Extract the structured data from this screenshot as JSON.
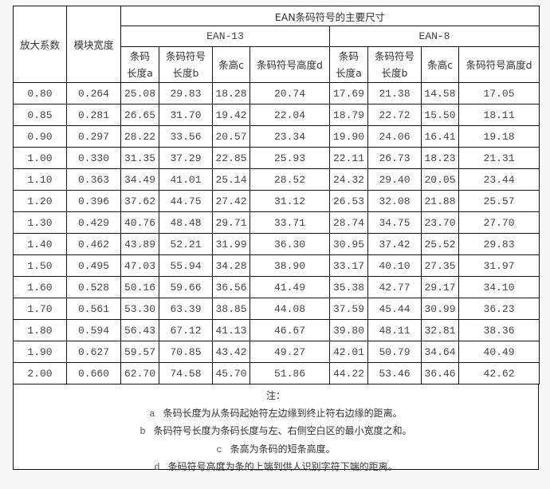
{
  "table": {
    "col_magnification": "放大系数",
    "col_module_width": "模块宽度",
    "group_title": "EAN条码符号的主要尺寸",
    "ean13": "EAN-13",
    "ean8": "EAN-8",
    "sub_headers": [
      {
        "l1": "条码",
        "l2": "长度a"
      },
      {
        "l1": "条码符号",
        "l2": "长度b"
      },
      {
        "l1": "条高c",
        "l2": ""
      },
      {
        "l1": "条码符号高度d",
        "l2": ""
      },
      {
        "l1": "条码",
        "l2": "长度a"
      },
      {
        "l1": "条码符号",
        "l2": "长度b"
      },
      {
        "l1": "条高c",
        "l2": ""
      },
      {
        "l1": "条码符号高度d",
        "l2": ""
      }
    ],
    "rows": [
      [
        "0.80",
        "0.264",
        "25.08",
        "29.83",
        "18.28",
        "20.74",
        "17.69",
        "21.38",
        "14.58",
        "17.05"
      ],
      [
        "0.85",
        "0.281",
        "26.65",
        "31.70",
        "19.42",
        "22.04",
        "18.79",
        "22.72",
        "15.50",
        "18.11"
      ],
      [
        "0.90",
        "0.297",
        "28.22",
        "33.56",
        "20.57",
        "23.34",
        "19.90",
        "24.06",
        "16.41",
        "19.18"
      ],
      [
        "1.00",
        "0.330",
        "31.35",
        "37.29",
        "22.85",
        "25.93",
        "22.11",
        "26.73",
        "18.23",
        "21.31"
      ],
      [
        "1.10",
        "0.363",
        "34.49",
        "41.01",
        "25.14",
        "28.52",
        "24.32",
        "29.40",
        "20.05",
        "23.44"
      ],
      [
        "1.20",
        "0.396",
        "37.62",
        "44.75",
        "27.42",
        "31.12",
        "26.53",
        "32.08",
        "21.88",
        "25.57"
      ],
      [
        "1.30",
        "0.429",
        "40.76",
        "48.48",
        "29.71",
        "33.71",
        "28.74",
        "34.75",
        "23.70",
        "27.70"
      ],
      [
        "1.40",
        "0.462",
        "43.89",
        "52.21",
        "31.99",
        "36.30",
        "30.95",
        "37.42",
        "25.52",
        "29.83"
      ],
      [
        "1.50",
        "0.495",
        "47.03",
        "55.94",
        "34.28",
        "38.90",
        "33.17",
        "40.10",
        "27.35",
        "31.97"
      ],
      [
        "1.60",
        "0.528",
        "50.16",
        "59.66",
        "36.56",
        "41.49",
        "35.38",
        "42.77",
        "29.17",
        "34.10"
      ],
      [
        "1.70",
        "0.561",
        "53.30",
        "63.39",
        "38.85",
        "44.08",
        "37.59",
        "45.44",
        "30.99",
        "36.23"
      ],
      [
        "1.80",
        "0.594",
        "56.43",
        "67.12",
        "41.13",
        "46.67",
        "39.80",
        "48.11",
        "32.81",
        "38.36"
      ],
      [
        "1.90",
        "0.627",
        "59.57",
        "70.85",
        "43.42",
        "49.27",
        "42.01",
        "50.79",
        "34.64",
        "40.49"
      ],
      [
        "2.00",
        "0.660",
        "62.70",
        "74.58",
        "45.70",
        "51.86",
        "44.22",
        "53.46",
        "36.46",
        "42.62"
      ]
    ]
  },
  "notes": {
    "title": "注：",
    "items": [
      {
        "key": "a",
        "text": "条码长度为从条码起始符左边缘到终止符右边缘的距离。"
      },
      {
        "key": "b",
        "text": "条码符号长度为条码长度与左、右侧空白区的最小宽度之和。"
      },
      {
        "key": "c",
        "text": "条高为条码的短条高度。"
      },
      {
        "key": "d",
        "text": "条码符号高度为条的上端到供人识别字符下端的距离。"
      }
    ]
  }
}
